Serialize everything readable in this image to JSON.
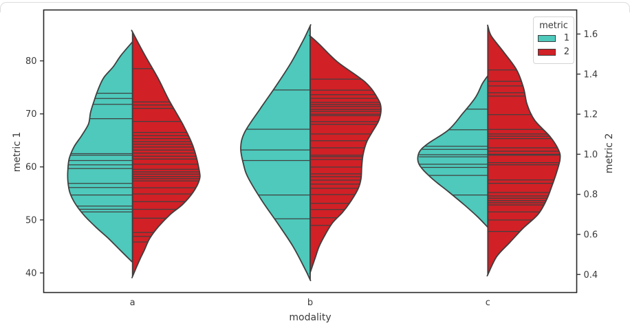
{
  "legend": {
    "title": "metric",
    "entries": [
      {
        "label": "1",
        "color": "#4EC9BB"
      },
      {
        "label": "2",
        "color": "#D12026"
      }
    ]
  },
  "chart_data": {
    "type": "violin",
    "subtype": "split-violin-with-stick-inner",
    "title": "",
    "xlabel": "modality",
    "categories": [
      "a",
      "b",
      "c"
    ],
    "axes": {
      "left": {
        "label": "metric 1",
        "ticks": [
          40,
          50,
          60,
          70,
          80
        ],
        "range": [
          36.3,
          89.6
        ]
      },
      "right": {
        "label": "metric 2",
        "ticks": [
          "0.4",
          "0.6",
          "0.8",
          "1.0",
          "1.2",
          "1.4",
          "1.6"
        ],
        "range": [
          0.31,
          1.72
        ]
      }
    },
    "grid": false,
    "legend_position": "upper right",
    "series": [
      {
        "name": "1",
        "metric": "metric 1",
        "axis": "left",
        "side": "left",
        "color": "#4EC9BB",
        "violins": [
          {
            "category": "a",
            "profile": [
              [
                83.6,
                0
              ],
              [
                81.0,
                17
              ],
              [
                78.9,
                28
              ],
              [
                76.8,
                42
              ],
              [
                74.6,
                50
              ],
              [
                72.4,
                56
              ],
              [
                70.3,
                61
              ],
              [
                68.1,
                64
              ],
              [
                65.9,
                74
              ],
              [
                63.8,
                85
              ],
              [
                61.6,
                92
              ],
              [
                59.5,
                94
              ],
              [
                57.3,
                94
              ],
              [
                55.1,
                91
              ],
              [
                53.0,
                83
              ],
              [
                50.8,
                70
              ],
              [
                48.6,
                53
              ],
              [
                46.5,
                35
              ],
              [
                44.3,
                18
              ],
              [
                42.0,
                0
              ]
            ],
            "sticks": [
              73.9,
              72.9,
              71.8,
              69.1,
              62.5,
              62.2,
              61.2,
              60.4,
              59.7,
              56.9,
              56.1,
              54.7,
              52.6,
              52.0,
              51.5
            ]
          },
          {
            "category": "b",
            "profile": [
              [
                86.6,
                0
              ],
              [
                83.9,
                10
              ],
              [
                79.6,
                28
              ],
              [
                75.2,
                50
              ],
              [
                70.9,
                73
              ],
              [
                66.6,
                95
              ],
              [
                63.6,
                101
              ],
              [
                60.5,
                97
              ],
              [
                57.9,
                90
              ],
              [
                53.6,
                70
              ],
              [
                49.3,
                47
              ],
              [
                45.0,
                25
              ],
              [
                40.6,
                7
              ],
              [
                38.7,
                0
              ]
            ],
            "sticks": [
              74.5,
              67.1,
              63.2,
              61.2,
              54.7,
              50.2
            ]
          },
          {
            "category": "c",
            "profile": [
              [
                77.2,
                0
              ],
              [
                75.7,
                8
              ],
              [
                73.1,
                18
              ],
              [
                70.0,
                37
              ],
              [
                67.0,
                57
              ],
              [
                64.4,
                87
              ],
              [
                62.7,
                100
              ],
              [
                60.5,
                100
              ],
              [
                57.9,
                82
              ],
              [
                55.3,
                57
              ],
              [
                52.7,
                33
              ],
              [
                50.6,
                15
              ],
              [
                48.6,
                0
              ]
            ],
            "sticks": [
              70.9,
              67.0,
              63.9,
              63.3,
              62.3,
              61.9,
              60.5,
              59.9,
              58.4,
              54.7
            ]
          }
        ]
      },
      {
        "name": "2",
        "metric": "metric 2",
        "axis": "right",
        "side": "right",
        "color": "#D12026",
        "violins": [
          {
            "category": "a",
            "profile": [
              [
                1.61,
                0
              ],
              [
                1.5,
                17
              ],
              [
                1.38,
                37
              ],
              [
                1.27,
                53
              ],
              [
                1.15,
                73
              ],
              [
                1.04,
                88
              ],
              [
                0.92,
                97
              ],
              [
                0.87,
                97
              ],
              [
                0.81,
                88
              ],
              [
                0.75,
                73
              ],
              [
                0.7,
                55
              ],
              [
                0.64,
                38
              ],
              [
                0.58,
                25
              ],
              [
                0.52,
                17
              ],
              [
                0.47,
                10
              ],
              [
                0.39,
                0
              ]
            ],
            "sticks": [
              1.427,
              1.261,
              1.246,
              1.229,
              1.164,
              1.109,
              1.093,
              1.078,
              1.063,
              1.05,
              1.036,
              1.021,
              1.006,
              0.99,
              0.976,
              0.95,
              0.925,
              0.912,
              0.901,
              0.889,
              0.878,
              0.867,
              0.833,
              0.802,
              0.764,
              0.725,
              0.681,
              0.61,
              0.59,
              0.562
            ]
          },
          {
            "category": "b",
            "profile": [
              [
                1.59,
                0
              ],
              [
                1.55,
                13
              ],
              [
                1.46,
                40
              ],
              [
                1.36,
                80
              ],
              [
                1.28,
                98
              ],
              [
                1.23,
                103
              ],
              [
                1.17,
                100
              ],
              [
                1.11,
                90
              ],
              [
                1.06,
                82
              ],
              [
                1.0,
                77
              ],
              [
                0.94,
                75
              ],
              [
                0.88,
                74
              ],
              [
                0.83,
                70
              ],
              [
                0.77,
                60
              ],
              [
                0.71,
                47
              ],
              [
                0.66,
                33
              ],
              [
                0.6,
                22
              ],
              [
                0.54,
                13
              ],
              [
                0.48,
                7
              ],
              [
                0.41,
                0
              ]
            ],
            "sticks": [
              1.375,
              1.32,
              1.297,
              1.279,
              1.259,
              1.248,
              1.238,
              1.224,
              1.214,
              1.2,
              1.193,
              1.163,
              1.149,
              1.101,
              1.067,
              1.032,
              0.995,
              0.988,
              0.974,
              0.936,
              0.902,
              0.888,
              0.871,
              0.851,
              0.83,
              0.799,
              0.755,
              0.724,
              0.683,
              0.645
            ]
          },
          {
            "category": "c",
            "profile": [
              [
                1.64,
                0
              ],
              [
                1.59,
                5
              ],
              [
                1.51,
                23
              ],
              [
                1.42,
                42
              ],
              [
                1.33,
                52
              ],
              [
                1.25,
                57
              ],
              [
                1.17,
                68
              ],
              [
                1.09,
                90
              ],
              [
                1.02,
                103
              ],
              [
                0.975,
                105
              ],
              [
                0.91,
                100
              ],
              [
                0.84,
                93
              ],
              [
                0.77,
                85
              ],
              [
                0.7,
                73
              ],
              [
                0.63,
                51
              ],
              [
                0.56,
                32
              ],
              [
                0.49,
                13
              ],
              [
                0.4,
                0
              ]
            ],
            "sticks": [
              1.421,
              1.364,
              1.341,
              1.307,
              1.29,
              1.198,
              1.124,
              1.101,
              1.09,
              1.078,
              1.032,
              1.015,
              1.0,
              0.995,
              0.958,
              0.947,
              0.872,
              0.855,
              0.809,
              0.792,
              0.781,
              0.769,
              0.758,
              0.747,
              0.712,
              0.672,
              0.615
            ]
          }
        ]
      }
    ],
    "style": {
      "edge_color": "#3E3E3E",
      "stick_color": "#404040",
      "spine_color": "#262626",
      "text_color": "#3A3A3A",
      "background": "#FFFFFF"
    }
  }
}
